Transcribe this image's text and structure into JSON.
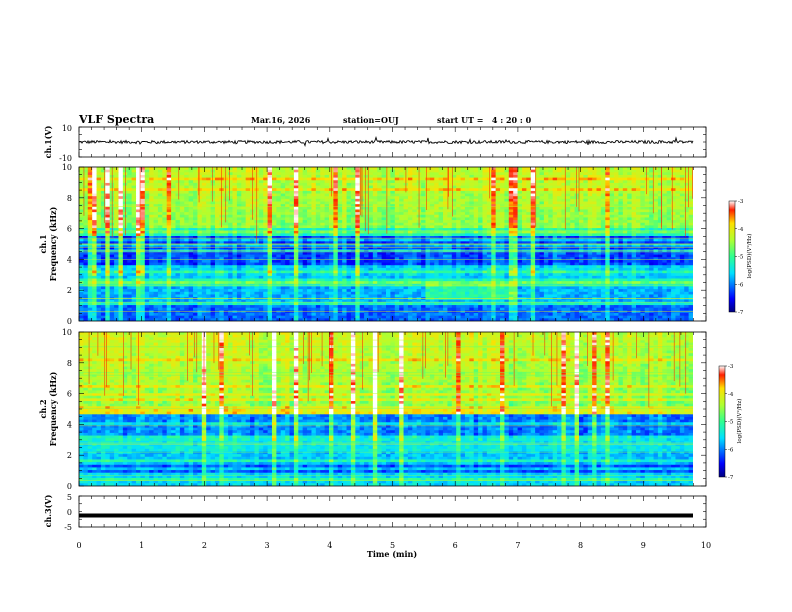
{
  "header": {
    "title": "VLF Spectra",
    "date": "Mar.16, 2026",
    "station": "station=OUJ",
    "start_ut": "start UT =   4 : 20 : 0"
  },
  "colors": {
    "trace": "#000000",
    "background": "#ffffff"
  },
  "chart_data": [
    {
      "type": "line",
      "name": "ch1-waveform",
      "ylabel": "ch.1(V)",
      "ylim": [
        -10,
        10
      ],
      "y_ticks": [
        "10",
        "-10"
      ],
      "xlim": [
        0,
        10
      ],
      "description_values": {
        "baseline": 0,
        "amplitude_approx": 1
      }
    },
    {
      "type": "heatmap",
      "name": "ch1-spectrogram",
      "ylabel_top": "ch.1",
      "ylabel": "Frequency (kHz)",
      "ylim": [
        0,
        10
      ],
      "y_ticks": [
        "0",
        "2",
        "4",
        "6",
        "8",
        "10"
      ],
      "xlim": [
        0,
        9.8
      ],
      "colorbar": {
        "label": "log(PSD)(V²/Hz)",
        "range": [
          -7,
          -3
        ],
        "ticks": [
          "-3",
          "-4",
          "-5",
          "-6",
          "-7"
        ]
      }
    },
    {
      "type": "heatmap",
      "name": "ch2-spectrogram",
      "ylabel_top": "ch.2",
      "ylabel": "Frequency (kHz)",
      "ylim": [
        0,
        10
      ],
      "y_ticks": [
        "0",
        "2",
        "4",
        "6",
        "8",
        "10"
      ],
      "xlim": [
        0,
        9.8
      ],
      "colorbar": {
        "label": "log(PSD)(V²/Hz)",
        "range": [
          -7,
          -3
        ],
        "ticks": [
          "-3",
          "-4",
          "-5",
          "-6",
          "-7"
        ]
      }
    },
    {
      "type": "line",
      "name": "ch3-waveform",
      "ylabel": "ch.3(V)",
      "ylim": [
        -5,
        5
      ],
      "y_ticks": [
        "5",
        "0",
        "-5"
      ],
      "xlim": [
        0,
        10
      ],
      "description_values": {
        "constant_level": -1.3
      }
    }
  ],
  "x_axis": {
    "label": "Time (min)",
    "ticks": [
      "0",
      "1",
      "2",
      "3",
      "4",
      "5",
      "6",
      "7",
      "8",
      "9",
      "10"
    ]
  }
}
